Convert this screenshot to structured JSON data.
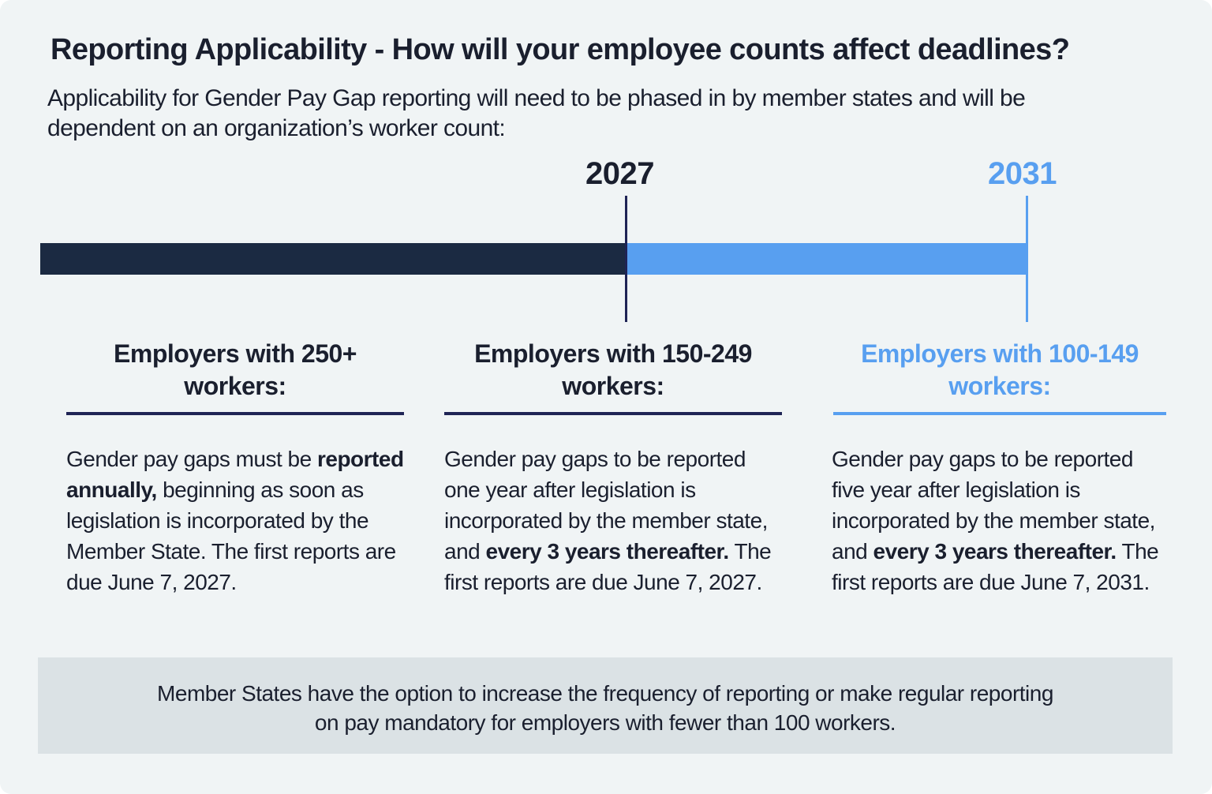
{
  "title": "Reporting Applicability - How will your employee counts affect deadlines?",
  "subtitle": "Applicability for Gender Pay Gap reporting will need to be phased in by member states and will be dependent on an organization’s worker count:",
  "colors": {
    "navy": "#1b2a42",
    "blue": "#589ff0",
    "text": "#1a1f2e",
    "background": "#f0f4f5",
    "footer": "#dbe2e5"
  },
  "timeline": {
    "milestones": [
      {
        "year": "2027"
      },
      {
        "year": "2031"
      }
    ]
  },
  "columns": [
    {
      "heading_line1": "Employers with 250+",
      "heading_line2": "workers:",
      "segments": [
        {
          "text": "Gender pay gaps must be ",
          "bold": false
        },
        {
          "text": "reported annually,",
          "bold": true
        },
        {
          "text": " beginning as soon as legislation is incorporated by the Member State. The first reports are due June 7, 2027.",
          "bold": false
        }
      ]
    },
    {
      "heading_line1": "Employers with 150-249",
      "heading_line2": "workers:",
      "segments": [
        {
          "text": "Gender pay gaps to be reported one year after legislation is incorporated by the member state, and ",
          "bold": false
        },
        {
          "text": "every 3 years thereafter.",
          "bold": true
        },
        {
          "text": " The first reports are due June 7, 2027.",
          "bold": false
        }
      ]
    },
    {
      "heading_line1": "Employers with 100-149",
      "heading_line2": "workers:",
      "segments": [
        {
          "text": "Gender pay gaps to be reported five year after legislation is incorporated by the member state, and ",
          "bold": false
        },
        {
          "text": "every 3 years thereafter.",
          "bold": true
        },
        {
          "text": " The first reports are due June 7, 2031.",
          "bold": false
        }
      ]
    }
  ],
  "footer": {
    "line1": "Member States have the option to increase the frequency of reporting or make regular reporting",
    "line2": "on pay mandatory for employers with fewer than 100 workers."
  }
}
